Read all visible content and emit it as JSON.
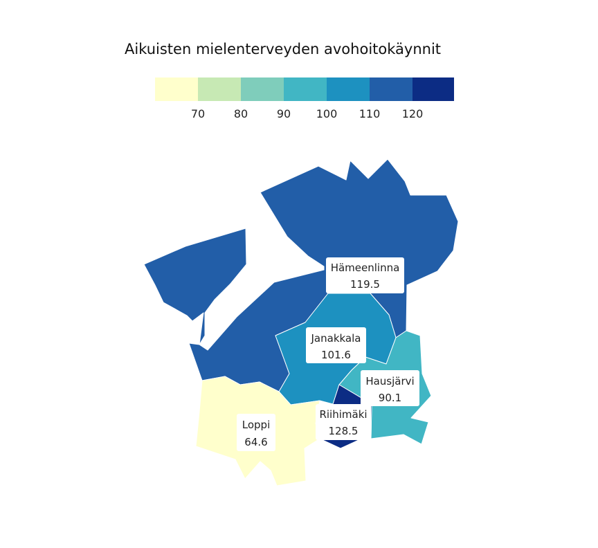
{
  "title": "Aikuisten mielenterveyden avohoitokäynnit",
  "legend": {
    "colors": [
      "#ffffcc",
      "#c7e9b4",
      "#7fcdbb",
      "#41b6c4",
      "#1d91c0",
      "#225ea8",
      "#0c2c84"
    ],
    "ticks": [
      "70",
      "80",
      "90",
      "100",
      "110",
      "120"
    ]
  },
  "regions": [
    {
      "id": "hameenlinna",
      "name": "Hämeenlinna",
      "value": "119.5",
      "color": "#225ea8"
    },
    {
      "id": "janakkala",
      "name": "Janakkala",
      "value": "101.6",
      "color": "#1d91c0"
    },
    {
      "id": "hausjarvi",
      "name": "Hausjärvi",
      "value": "90.1",
      "color": "#41b6c4"
    },
    {
      "id": "riihimaki",
      "name": "Riihimäki",
      "value": "128.5",
      "color": "#0c2c84"
    },
    {
      "id": "loppi",
      "name": "Loppi",
      "value": "64.6",
      "color": "#ffffcc"
    }
  ]
}
